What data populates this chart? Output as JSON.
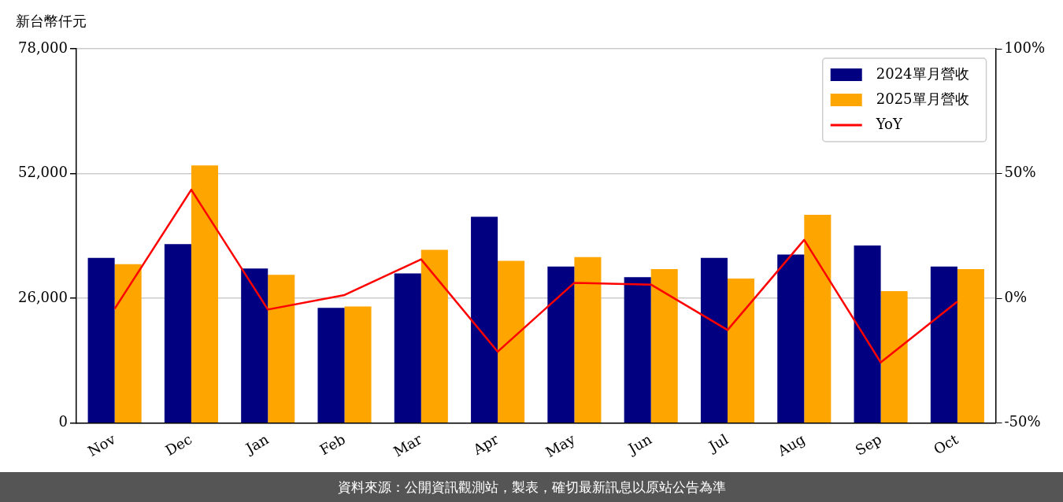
{
  "chart_data": {
    "type": "bar",
    "ylabel": "新台幣仟元",
    "categories": [
      "Nov",
      "Dec",
      "Jan",
      "Feb",
      "Mar",
      "Apr",
      "May",
      "Jun",
      "Jul",
      "Aug",
      "Sep",
      "Oct"
    ],
    "series": [
      {
        "name": "2024單月營收",
        "color": "#000080",
        "values": [
          34400,
          37300,
          32200,
          24000,
          31200,
          43000,
          32600,
          30400,
          34400,
          35100,
          37000,
          32600
        ]
      },
      {
        "name": "2025單月營收",
        "color": "#ffa500",
        "values": [
          33100,
          53700,
          30900,
          24300,
          36100,
          33800,
          34600,
          32100,
          30100,
          43400,
          27500,
          32100
        ]
      },
      {
        "name": "YoY",
        "type": "line",
        "axis": "y2",
        "color": "#ff0000",
        "marker": "none",
        "values": [
          -4.2,
          43.5,
          -4.5,
          1.3,
          15.6,
          -21.4,
          6.2,
          5.5,
          -12.7,
          23.4,
          -25.7,
          -1.3
        ]
      }
    ],
    "ylim": [
      0,
      78000
    ],
    "yticks": [
      0,
      {
        "value": 26000,
        "label": "26,000"
      },
      {
        "value": 52000,
        "label": "52,000"
      },
      {
        "value": 78000,
        "label": "78,000"
      }
    ],
    "y2lim": [
      -50,
      100
    ],
    "y2ticks": [
      {
        "value": -50,
        "label": "-50%"
      },
      {
        "value": 0,
        "label": "0%"
      },
      {
        "value": 50,
        "label": "50%"
      },
      {
        "value": 100,
        "label": "100%"
      }
    ],
    "grid": "y",
    "legend": "top right",
    "annotations": [
      "資料來源：公開資訊觀測站，製表，確切最新訊息以原站公告為準"
    ]
  }
}
